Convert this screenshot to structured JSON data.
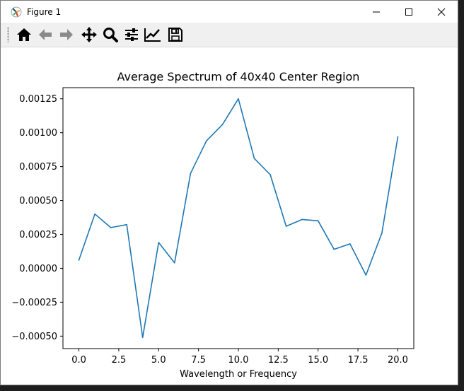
{
  "window": {
    "title": "Figure 1"
  },
  "colors": {
    "line": "#1f77b4",
    "accent": "#d9a020"
  },
  "icons": [
    "home-icon",
    "back-arrow-icon",
    "forward-arrow-icon",
    "pan-icon",
    "zoom-icon",
    "configure-subplots-icon",
    "edit-axis-icon",
    "save-icon",
    "minimize-icon",
    "maximize-icon",
    "close-icon"
  ],
  "chart_data": {
    "type": "line",
    "title": "Average Spectrum of 40x40 Center Region",
    "xlabel": "Wavelength or Frequency",
    "ylabel": "",
    "x": [
      0,
      1,
      2,
      3,
      4,
      5,
      6,
      7,
      8,
      9,
      10,
      11,
      12,
      13,
      14,
      15,
      16,
      17,
      18,
      19,
      20
    ],
    "series": [
      {
        "values": [
          6e-05,
          0.0004,
          0.0003,
          0.000322,
          -0.00051,
          0.00019,
          4e-05,
          0.0007,
          0.00094,
          0.00106,
          0.00125,
          0.00081,
          0.00069,
          0.00031,
          0.00036,
          0.00035,
          0.00014,
          0.00018,
          -5e-05,
          0.00026,
          0.00097
        ]
      }
    ],
    "xticks": [
      "0.0",
      "2.5",
      "5.0",
      "7.5",
      "10.0",
      "12.5",
      "15.0",
      "17.5",
      "20.0"
    ],
    "xtick_values": [
      0,
      2.5,
      5,
      7.5,
      10,
      12.5,
      15,
      17.5,
      20
    ],
    "yticks": [
      "0.00125",
      "0.00100",
      "0.00075",
      "0.00050",
      "0.00025",
      "0.00000",
      "−0.00025",
      "−0.00050"
    ],
    "ytick_values": [
      0.00125,
      0.001,
      0.00075,
      0.0005,
      0.00025,
      0,
      -0.00025,
      -0.0005
    ],
    "xlim": [
      -1,
      21
    ],
    "ylim": [
      -0.000592,
      0.001332
    ],
    "grid": false,
    "legend": "none"
  }
}
